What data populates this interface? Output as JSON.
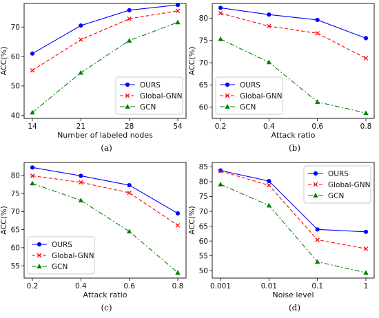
{
  "chart_data": [
    {
      "type": "line",
      "caption": "(a)",
      "categories": [
        "14",
        "21",
        "28",
        "54"
      ],
      "xlabel": "Number of labeled nodes",
      "ylabel": "ACC(%)",
      "ylim": [
        39,
        78
      ],
      "yticks": [
        40,
        50,
        60,
        70
      ],
      "legend": "bottom-right",
      "series": [
        {
          "name": "OURS",
          "color": "#0000ff",
          "marker": "circle",
          "dash": "solid",
          "values": [
            61.0,
            70.5,
            75.7,
            77.5
          ]
        },
        {
          "name": "Global-GNN",
          "color": "#ff0000",
          "marker": "x",
          "dash": "dashed",
          "values": [
            55.3,
            65.7,
            72.8,
            75.5
          ]
        },
        {
          "name": "GCN",
          "color": "#008000",
          "marker": "triangle",
          "dash": "dashdot",
          "values": [
            41.0,
            54.5,
            65.4,
            71.6
          ]
        }
      ]
    },
    {
      "type": "line",
      "caption": "(b)",
      "categories": [
        "0.2",
        "0.4",
        "0.6",
        "0.8"
      ],
      "xlabel": "Attack ratio",
      "ylabel": "ACC(%)",
      "ylim": [
        57.5,
        83.3
      ],
      "yticks": [
        60,
        65,
        70,
        75,
        80
      ],
      "legend": "bottom-left",
      "series": [
        {
          "name": "OURS",
          "color": "#0000ff",
          "marker": "circle",
          "dash": "solid",
          "values": [
            82.3,
            80.8,
            79.6,
            75.5
          ]
        },
        {
          "name": "Global-GNN",
          "color": "#ff0000",
          "marker": "x",
          "dash": "dashed",
          "values": [
            81.1,
            78.2,
            76.6,
            71.0
          ]
        },
        {
          "name": "GCN",
          "color": "#008000",
          "marker": "triangle",
          "dash": "dashdot",
          "values": [
            75.3,
            70.1,
            61.2,
            58.7
          ]
        }
      ]
    },
    {
      "type": "line",
      "caption": "(c)",
      "categories": [
        "0.2",
        "0.4",
        "0.6",
        "0.8"
      ],
      "xlabel": "Attack ratio",
      "ylabel": "ACC(%)",
      "ylim": [
        51.6,
        83.6
      ],
      "yticks": [
        55,
        60,
        65,
        70,
        75,
        80
      ],
      "legend": "bottom-left",
      "series": [
        {
          "name": "OURS",
          "color": "#0000ff",
          "marker": "circle",
          "dash": "solid",
          "values": [
            82.2,
            79.9,
            77.3,
            69.5
          ]
        },
        {
          "name": "Global-GNN",
          "color": "#ff0000",
          "marker": "x",
          "dash": "dashed",
          "values": [
            79.9,
            78.1,
            75.2,
            66.2
          ]
        },
        {
          "name": "GCN",
          "color": "#008000",
          "marker": "triangle",
          "dash": "dashdot",
          "values": [
            77.8,
            73.1,
            64.5,
            53.1
          ]
        }
      ]
    },
    {
      "type": "line",
      "caption": "(d)",
      "categories": [
        "0.001",
        "0.01",
        "0.1",
        "1"
      ],
      "xlabel": "Noise level",
      "ylabel": "ACC(%)",
      "ylim": [
        47.5,
        86.5
      ],
      "yticks": [
        50,
        55,
        60,
        65,
        70,
        75,
        80,
        85
      ],
      "legend": "top-right",
      "series": [
        {
          "name": "OURS",
          "color": "#0000ff",
          "marker": "circle",
          "dash": "solid",
          "values": [
            83.8,
            80.2,
            63.9,
            63.1
          ]
        },
        {
          "name": "Global-GNN",
          "color": "#ff0000",
          "marker": "x",
          "dash": "dashed",
          "values": [
            83.6,
            78.8,
            60.4,
            57.4
          ]
        },
        {
          "name": "GCN",
          "color": "#008000",
          "marker": "triangle",
          "dash": "dashdot",
          "values": [
            79.1,
            72.0,
            53.0,
            49.3
          ]
        }
      ]
    }
  ]
}
